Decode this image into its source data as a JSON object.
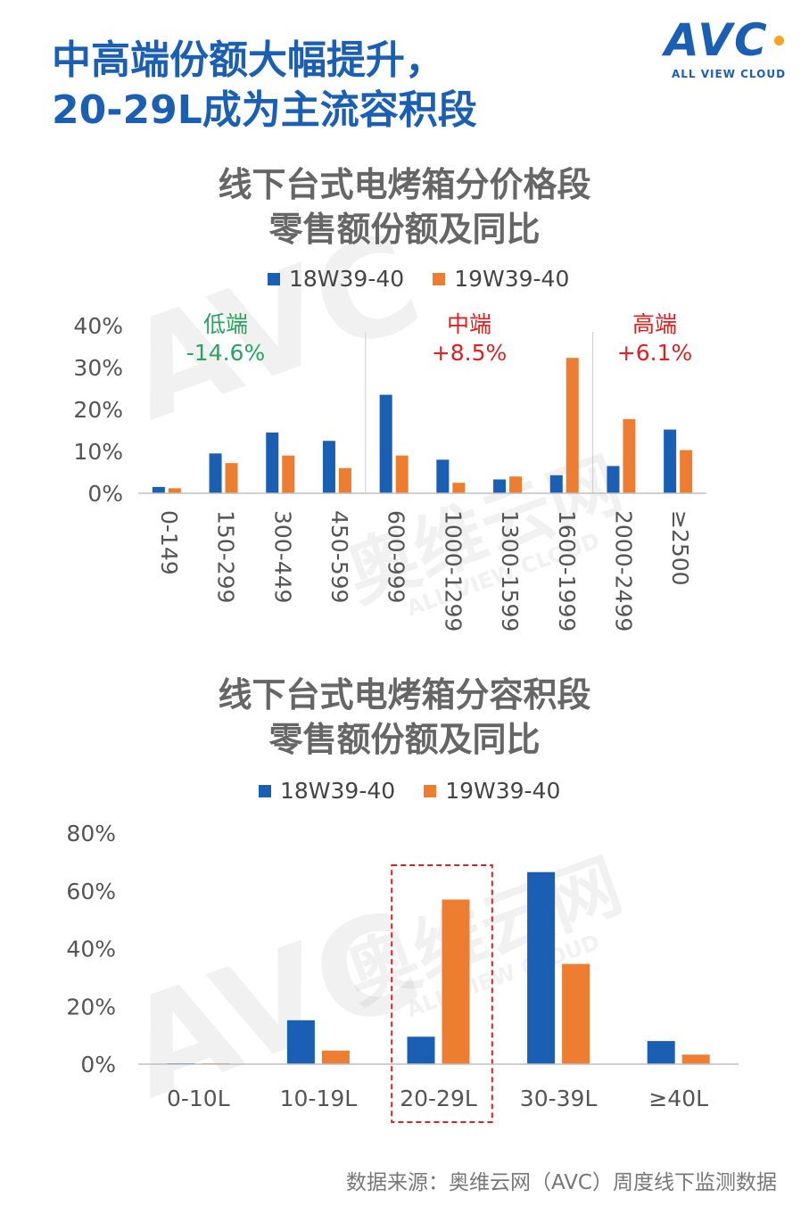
{
  "headline": {
    "line1": "中高端份额大幅提升，",
    "line2": "20-29L成为主流容积段"
  },
  "logo": {
    "word": "AVC",
    "sub": "ALL VIEW CLOUD"
  },
  "colors": {
    "blue": "#1a5fb4",
    "orange": "#ed7d31",
    "green": "#27a55e",
    "red": "#e02020"
  },
  "watermark": {
    "cn": "奥维云网",
    "en": "ALL VIEW CLOUD",
    "word": "AVC"
  },
  "chart_data": [
    {
      "type": "bar",
      "title": [
        "线下台式电烤箱分价格段",
        "零售额份额及同比"
      ],
      "categories": [
        "0-149",
        "150-299",
        "300-449",
        "450-599",
        "600-999",
        "1000-1299",
        "1300-1599",
        "1600-1999",
        "2000-2499",
        "≥2500"
      ],
      "series": [
        {
          "name": "18W39-40",
          "values": [
            1.5,
            9.5,
            14.5,
            12.5,
            23.5,
            8.0,
            3.3,
            4.3,
            6.5,
            15.2
          ]
        },
        {
          "name": "19W39-40",
          "values": [
            1.2,
            7.2,
            9.0,
            6.0,
            9.0,
            2.5,
            4.0,
            32.3,
            17.7,
            10.3
          ]
        }
      ],
      "yticks": [
        "0%",
        "10%",
        "20%",
        "30%",
        "40%"
      ],
      "ylim": [
        0,
        40
      ],
      "segments": [
        {
          "name": "低端",
          "change": "-14.6%",
          "color": "green"
        },
        {
          "name": "中端",
          "change": "+8.5%",
          "color": "red"
        },
        {
          "name": "高端",
          "change": "+6.1%",
          "color": "red"
        }
      ],
      "legend": "top"
    },
    {
      "type": "bar",
      "title": [
        "线下台式电烤箱分容积段",
        "零售额份额及同比"
      ],
      "categories": [
        "0-10L",
        "10-19L",
        "20-29L",
        "30-39L",
        "≥40L"
      ],
      "series": [
        {
          "name": "18W39-40",
          "values": [
            0.3,
            15.2,
            9.5,
            66.5,
            8.0
          ]
        },
        {
          "name": "19W39-40",
          "values": [
            0.2,
            4.7,
            57.0,
            34.7,
            3.3
          ]
        }
      ],
      "yticks": [
        "0%",
        "20%",
        "40%",
        "60%",
        "80%"
      ],
      "ylim": [
        0,
        80
      ],
      "highlight_category": "20-29L",
      "legend": "top"
    }
  ],
  "source": "数据来源：奥维云网（AVC）周度线下监测数据"
}
